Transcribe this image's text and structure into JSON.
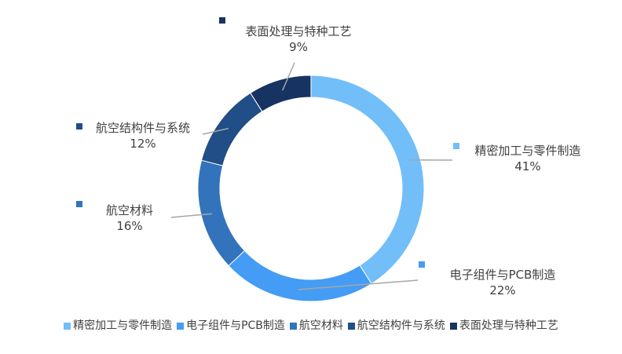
{
  "chart_data": {
    "type": "pie",
    "subtype": "donut",
    "title": "",
    "categories": [
      "精密加工与零件制造",
      "电子组件与PCB制造",
      "航空材料",
      "航空结构件与系统",
      "表面处理与特种工艺"
    ],
    "values": [
      41,
      22,
      16,
      12,
      9
    ],
    "value_labels": [
      "41%",
      "22%",
      "16%",
      "12%",
      "9%"
    ],
    "colors": [
      "#72BEF9",
      "#449CF4",
      "#3273BC",
      "#214E86",
      "#173361"
    ],
    "legend_position": "bottom"
  }
}
